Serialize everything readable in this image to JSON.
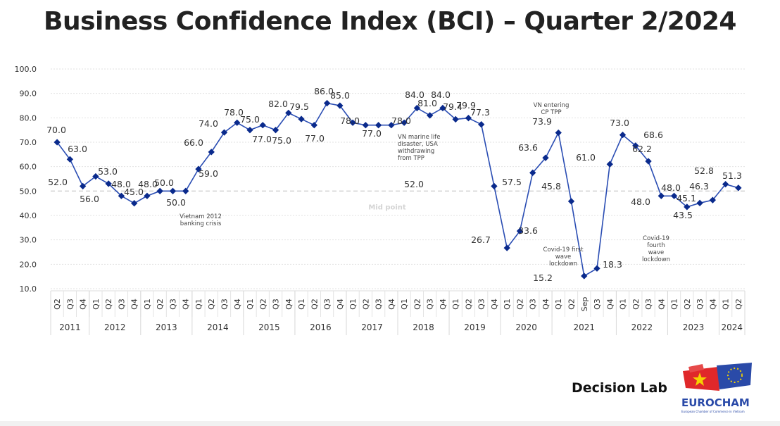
{
  "chart_data": {
    "type": "line",
    "title": "Business Confidence Index (BCI) – Quarter 2/2024",
    "ylim": [
      10,
      100
    ],
    "yticks": [
      "10.0",
      "20.0",
      "30.0",
      "40.0",
      "50.0",
      "60.0",
      "70.0",
      "80.0",
      "90.0",
      "100.0"
    ],
    "grid": true,
    "midpoint": {
      "value": 50,
      "label": "Mid point"
    },
    "line_color": "#2a4db3",
    "marker_color": "#0a2a8c",
    "years": [
      {
        "year": "2011",
        "quarters": [
          "Q2",
          "Q3",
          "Q4"
        ]
      },
      {
        "year": "2012",
        "quarters": [
          "Q1",
          "Q2",
          "Q3",
          "Q4"
        ]
      },
      {
        "year": "2013",
        "quarters": [
          "Q1",
          "Q2",
          "Q3",
          "Q4"
        ]
      },
      {
        "year": "2014",
        "quarters": [
          "Q1",
          "Q2",
          "Q3",
          "Q4"
        ]
      },
      {
        "year": "2015",
        "quarters": [
          "Q1",
          "Q2",
          "Q3",
          "Q4"
        ]
      },
      {
        "year": "2016",
        "quarters": [
          "Q1",
          "Q2",
          "Q3",
          "Q4"
        ]
      },
      {
        "year": "2017",
        "quarters": [
          "Q1",
          "Q2",
          "Q3",
          "Q4"
        ]
      },
      {
        "year": "2018",
        "quarters": [
          "Q1",
          "Q2",
          "Q3",
          "Q4"
        ]
      },
      {
        "year": "2019",
        "quarters": [
          "Q1",
          "Q2",
          "Q3",
          "Q4"
        ]
      },
      {
        "year": "2020",
        "quarters": [
          "Q1",
          "Q2",
          "Q3",
          "Q4"
        ]
      },
      {
        "year": "2021",
        "quarters": [
          "Q1",
          "Q2",
          "Sep",
          "Q3",
          "Q4"
        ]
      },
      {
        "year": "2022",
        "quarters": [
          "Q1",
          "Q2",
          "Q3",
          "Q4"
        ]
      },
      {
        "year": "2023",
        "quarters": [
          "Q1",
          "Q2",
          "Q3",
          "Q4"
        ]
      },
      {
        "year": "2024",
        "quarters": [
          "Q1",
          "Q2"
        ]
      }
    ],
    "values": [
      70.0,
      63.0,
      52.0,
      56.0,
      53.0,
      48.0,
      45.0,
      48.0,
      50.0,
      50.0,
      50.0,
      59.0,
      66.0,
      74.0,
      78.0,
      75.0,
      77.0,
      75.0,
      82.0,
      79.5,
      77.0,
      86.0,
      85.0,
      78.0,
      77.0,
      77.0,
      77.0,
      78.0,
      84.0,
      81.0,
      84.0,
      79.4,
      79.9,
      77.3,
      52.0,
      26.7,
      33.6,
      57.5,
      63.6,
      73.9,
      45.8,
      15.2,
      18.3,
      61.0,
      73.0,
      68.6,
      62.2,
      48.0,
      48.0,
      43.5,
      45.1,
      46.3,
      52.8,
      51.3
    ],
    "data_labels": [
      "70.0",
      "63.0",
      "52.0",
      "56.0",
      "53.0",
      "48.0",
      "45.0",
      "48.0",
      "50.0",
      "",
      "50.0",
      "59.0",
      "66.0",
      "74.0",
      "78.0",
      "75.0",
      "77.0",
      "75.0",
      "82.0",
      "79.5",
      "77.0",
      "86.0",
      "85.0",
      "78.0",
      "77.0",
      "",
      "",
      "78.0",
      "84.0",
      "81.0",
      "84.0",
      "79.4",
      "79.9",
      "77.3",
      "52.0",
      "26.7",
      "33.6",
      "57.5",
      "63.6",
      "73.9",
      "45.8",
      "15.2",
      "18.3",
      "61.0",
      "73.0",
      "68.6",
      "62.2",
      "48.0",
      "48.0",
      "43.5",
      "45.1",
      "46.3",
      "52.8",
      "51.3"
    ],
    "annotations": [
      {
        "at": "2013 Q4",
        "text": [
          "Vietnam 2012",
          "banking crisis"
        ]
      },
      {
        "at": "2018 Q1",
        "text": [
          "VN marine life",
          "disaster, USA",
          "withdrawing",
          "from TPP"
        ]
      },
      {
        "at": "2021 Q1",
        "text": [
          "VN entering",
          "CP TPP"
        ]
      },
      {
        "at": "2021 Sep",
        "text": [
          "Covid-19 first",
          "wave",
          "lockdown"
        ]
      },
      {
        "at": "2022 Q4",
        "text": [
          "Covid-19",
          "fourth",
          "wave",
          "lockdown"
        ]
      }
    ]
  },
  "footer": {
    "brand": "Decision Lab",
    "logo_text": "EUROCHAM",
    "logo_subtext": "European Chamber of Commerce in Vietnam"
  }
}
